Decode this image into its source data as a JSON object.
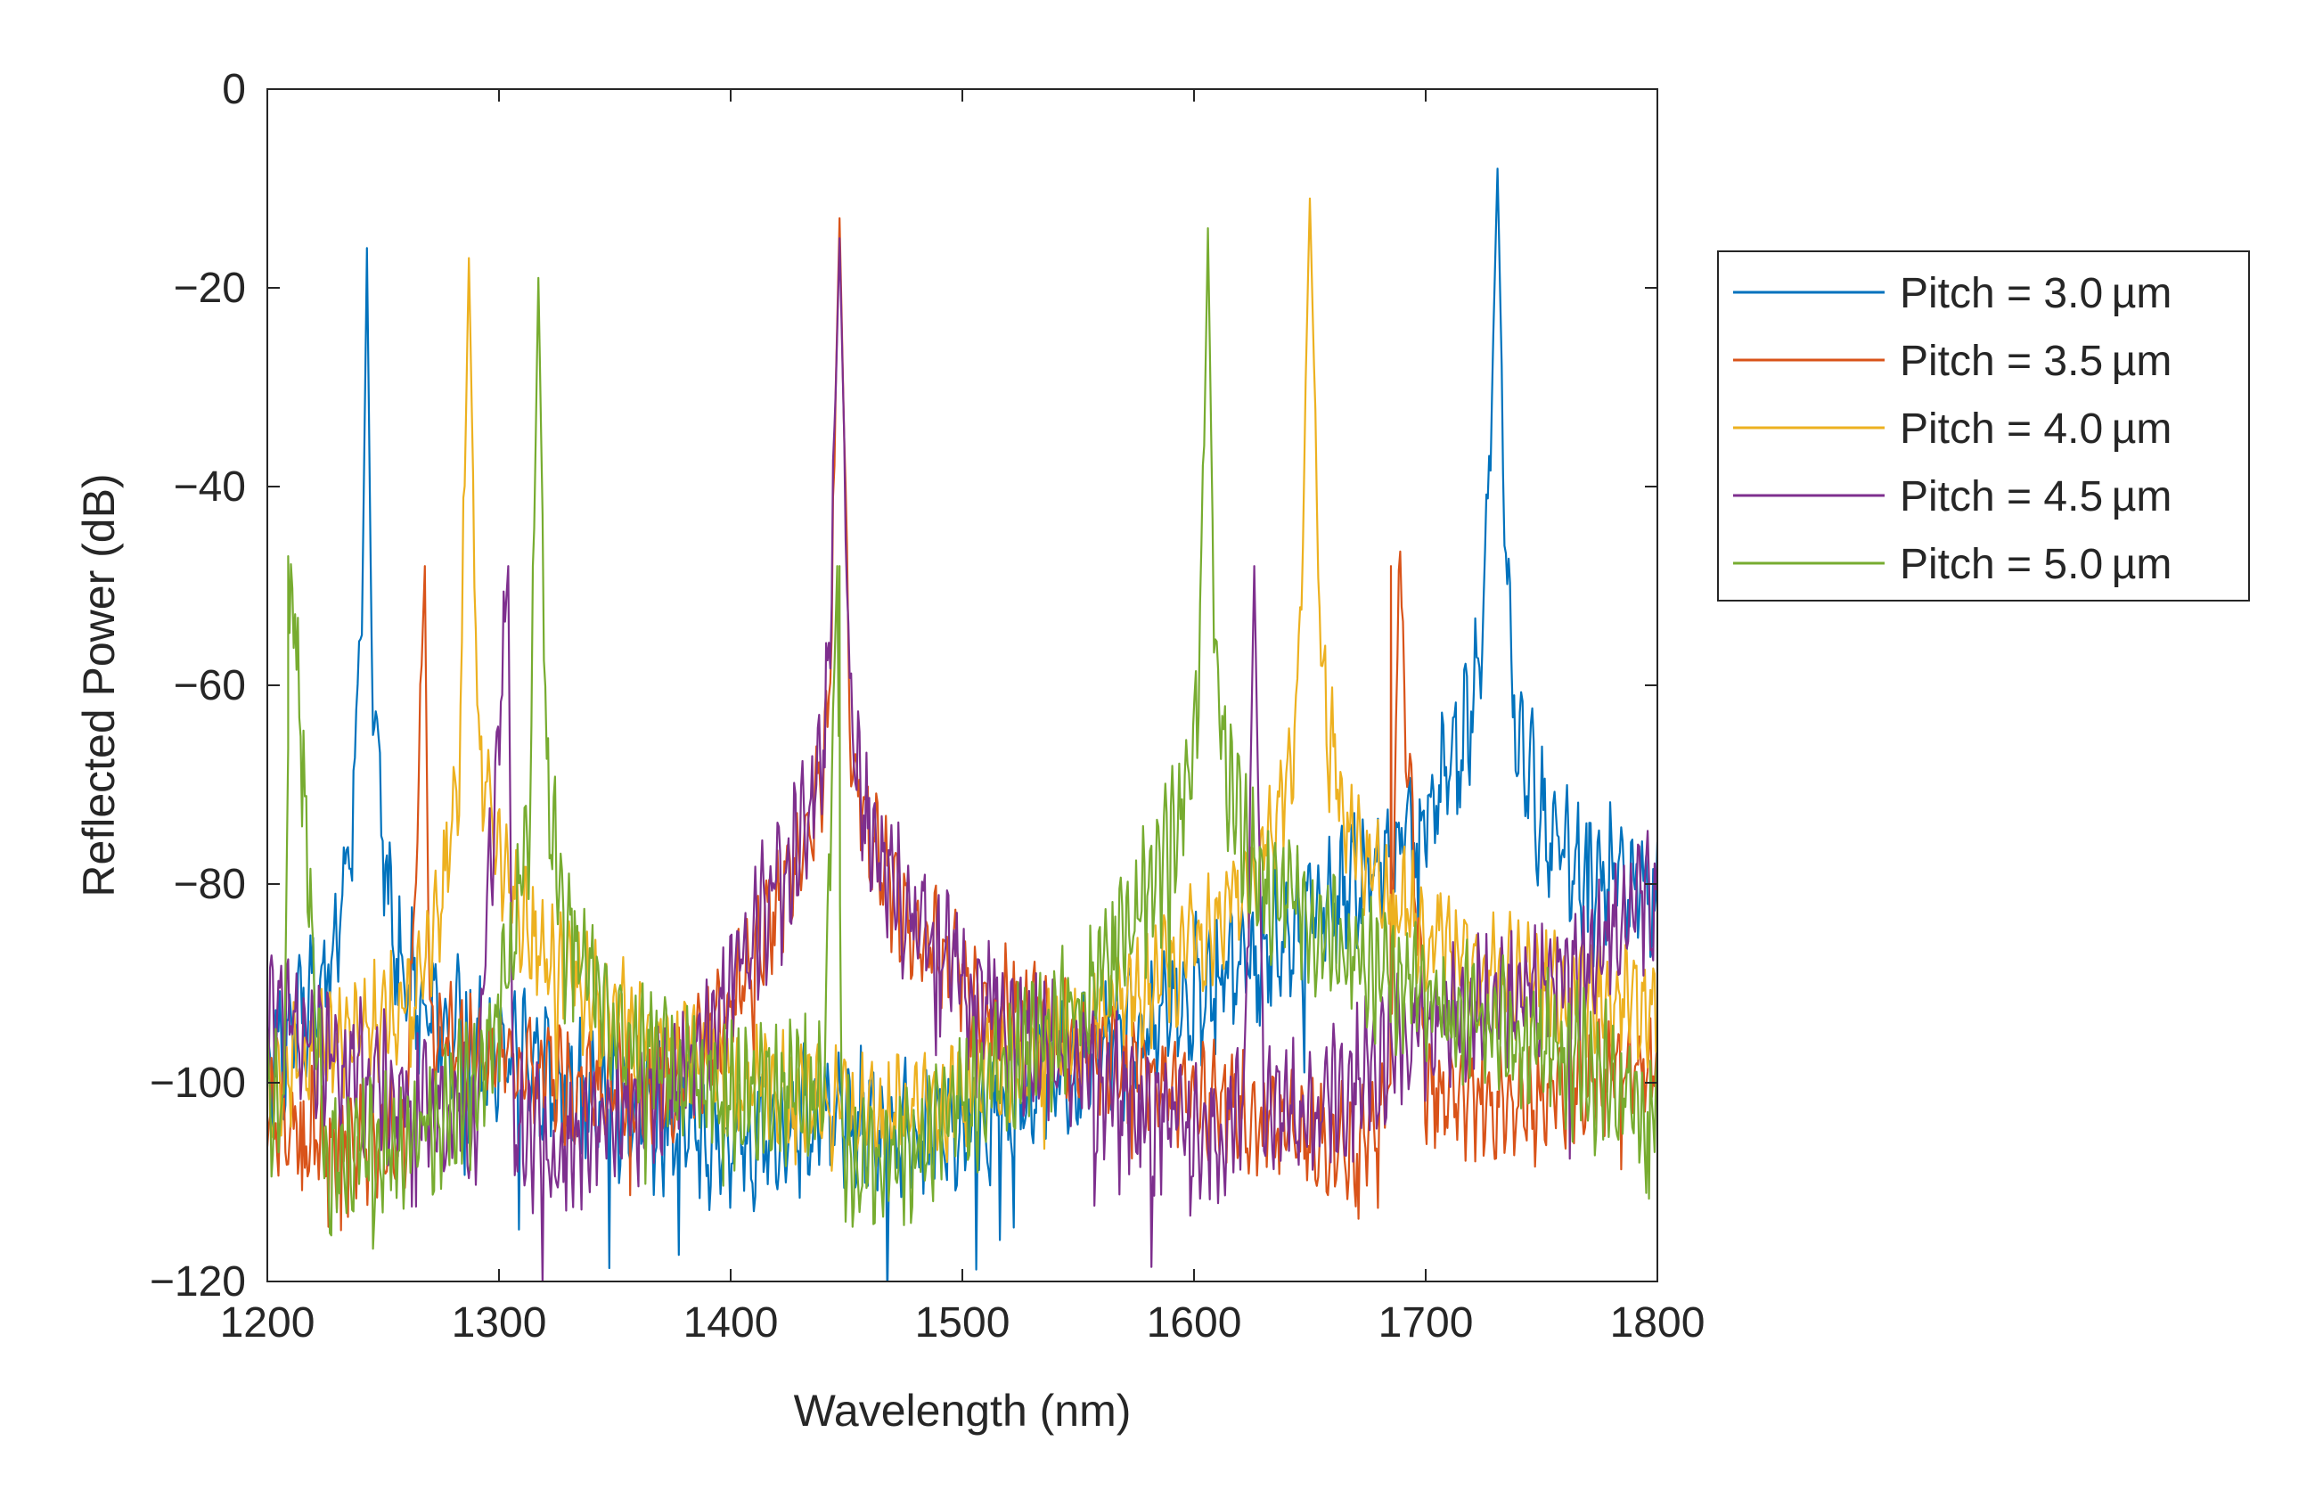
{
  "chart_data": {
    "type": "line",
    "title": "",
    "xlabel": "Wavelength (nm)",
    "ylabel": "Reflected Power (dB)",
    "xlim": [
      1200,
      1800
    ],
    "ylim": [
      -120,
      0
    ],
    "xticks": [
      1200,
      1300,
      1400,
      1500,
      1600,
      1700,
      1800
    ],
    "xtick_labels": [
      "1200",
      "1300",
      "1400",
      "1500",
      "1600",
      "1700",
      "1800"
    ],
    "yticks": [
      0,
      -20,
      -40,
      -60,
      -80,
      -100,
      -120
    ],
    "ytick_labels": [
      "0",
      "−20",
      "−40",
      "−60",
      "−80",
      "−100",
      "−120"
    ],
    "grid": false,
    "legend_position": "outside-right",
    "series": [
      {
        "name": "Pitch = 3.0 µm",
        "color": "#0072BD",
        "x": [
          1200,
          1215,
          1225,
          1232,
          1238,
          1241,
          1243,
          1245,
          1248,
          1255,
          1265,
          1280,
          1300,
          1320,
          1340,
          1360,
          1380,
          1400,
          1420,
          1440,
          1460,
          1480,
          1500,
          1520,
          1540,
          1560,
          1580,
          1600,
          1620,
          1640,
          1660,
          1680,
          1695,
          1705,
          1715,
          1722,
          1727,
          1731,
          1735,
          1740,
          1750,
          1765,
          1780,
          1800
        ],
        "y": [
          -98,
          -93,
          -89,
          -82,
          -70,
          -52,
          -16,
          -55,
          -72,
          -86,
          -92,
          -95,
          -97,
          -99,
          -101,
          -103,
          -105,
          -107,
          -105,
          -103,
          -104,
          -106,
          -105,
          -103,
          -100,
          -97,
          -94,
          -91,
          -88,
          -85,
          -82,
          -78,
          -75,
          -71,
          -67,
          -60,
          -45,
          -8,
          -52,
          -66,
          -73,
          -78,
          -80,
          -81
        ],
        "noise_amp": 6,
        "peaks": [
          [
            1243,
            -16
          ],
          [
            1731,
            -8
          ]
        ]
      },
      {
        "name": "Pitch = 3.5 µm",
        "color": "#D95319",
        "x": [
          1200,
          1230,
          1260,
          1268,
          1270,
          1290,
          1320,
          1350,
          1380,
          1400,
          1420,
          1435,
          1442,
          1447,
          1452,
          1460,
          1475,
          1500,
          1530,
          1560,
          1590,
          1620,
          1650,
          1670,
          1685,
          1688,
          1700,
          1730,
          1760,
          1800
        ],
        "y": [
          -103,
          -106,
          -105,
          -48,
          -95,
          -97,
          -99,
          -101,
          -100,
          -92,
          -82,
          -75,
          -65,
          -13,
          -68,
          -76,
          -83,
          -90,
          -94,
          -97,
          -100,
          -103,
          -106,
          -107,
          -100,
          -48,
          -100,
          -103,
          -101,
          -97
        ],
        "noise_amp": 5,
        "peaks": [
          [
            1268,
            -48
          ],
          [
            1447,
            -13
          ],
          [
            1685,
            -48
          ]
        ]
      },
      {
        "name": "Pitch = 4.0 µm",
        "color": "#EDB120",
        "x": [
          1200,
          1230,
          1260,
          1275,
          1283,
          1287,
          1291,
          1300,
          1315,
          1340,
          1370,
          1400,
          1430,
          1460,
          1490,
          1520,
          1550,
          1580,
          1605,
          1625,
          1638,
          1645,
          1650,
          1655,
          1662,
          1675,
          1700,
          1730,
          1760,
          1800
        ],
        "y": [
          -100,
          -96,
          -92,
          -82,
          -68,
          -17,
          -65,
          -78,
          -86,
          -92,
          -96,
          -99,
          -102,
          -104,
          -102,
          -99,
          -95,
          -90,
          -85,
          -79,
          -72,
          -62,
          -11,
          -58,
          -70,
          -78,
          -85,
          -89,
          -91,
          -92
        ],
        "noise_amp": 5,
        "peaks": [
          [
            1287,
            -17
          ],
          [
            1650,
            -11
          ]
        ]
      },
      {
        "name": "Pitch = 4.5 µm",
        "color": "#7E2F8E",
        "x": [
          1200,
          1230,
          1260,
          1290,
          1304,
          1306,
          1320,
          1350,
          1380,
          1400,
          1420,
          1435,
          1442,
          1447,
          1452,
          1460,
          1475,
          1500,
          1530,
          1560,
          1590,
          1610,
          1622,
          1626,
          1630,
          1650,
          1680,
          1710,
          1740,
          1770,
          1800
        ],
        "y": [
          -92,
          -98,
          -102,
          -104,
          -48,
          -104,
          -107,
          -104,
          -100,
          -90,
          -80,
          -73,
          -62,
          -15,
          -65,
          -75,
          -82,
          -90,
          -96,
          -100,
          -104,
          -106,
          -100,
          -48,
          -101,
          -104,
          -98,
          -93,
          -91,
          -88,
          -80
        ],
        "noise_amp": 6,
        "peaks": [
          [
            1304,
            -48
          ],
          [
            1447,
            -15
          ],
          [
            1626,
            -48
          ]
        ]
      },
      {
        "name": "Pitch = 5.0 µm",
        "color": "#77AC30",
        "x": [
          1200,
          1207,
          1210,
          1225,
          1260,
          1290,
          1305,
          1313,
          1317,
          1321,
          1330,
          1350,
          1380,
          1410,
          1440,
          1446,
          1448,
          1455,
          1480,
          1510,
          1540,
          1565,
          1585,
          1597,
          1603,
          1606,
          1609,
          1615,
          1630,
          1660,
          1690,
          1720,
          1750,
          1780,
          1800
        ],
        "y": [
          -100,
          -105,
          -47,
          -108,
          -106,
          -100,
          -88,
          -75,
          -19,
          -72,
          -84,
          -94,
          -100,
          -102,
          -100,
          -48,
          -105,
          -110,
          -106,
          -100,
          -95,
          -87,
          -80,
          -70,
          -55,
          -14,
          -58,
          -70,
          -80,
          -86,
          -90,
          -93,
          -96,
          -100,
          -104
        ],
        "noise_amp": 6,
        "peaks": [
          [
            1209,
            -47
          ],
          [
            1317,
            -19
          ],
          [
            1447,
            -48
          ],
          [
            1606,
            -14
          ]
        ]
      }
    ]
  }
}
